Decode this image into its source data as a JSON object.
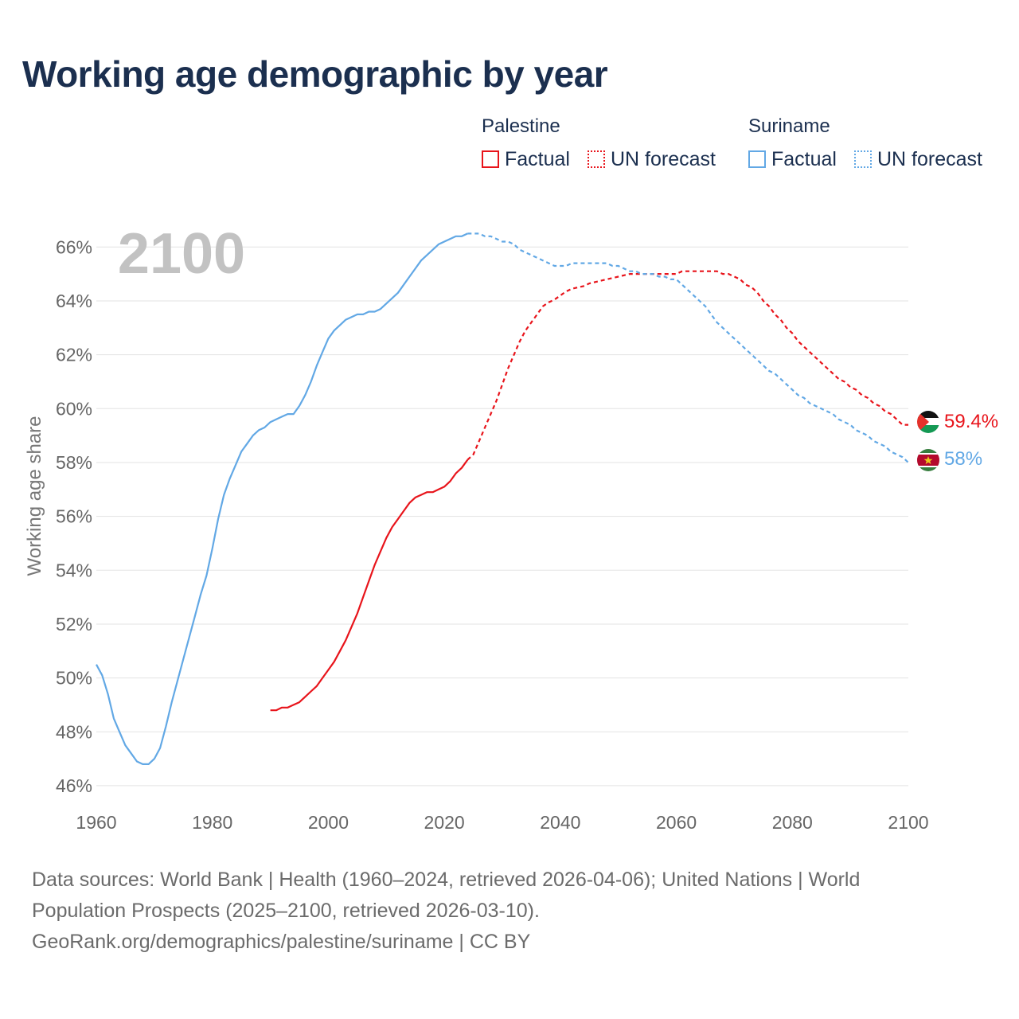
{
  "title": "Working age demographic by year",
  "legend": {
    "groups": [
      {
        "country": "Palestine",
        "color": "#e8141b",
        "items": [
          "Factual",
          "UN forecast"
        ]
      },
      {
        "country": "Suriname",
        "color": "#62a8e5",
        "items": [
          "Factual",
          "UN forecast"
        ]
      }
    ]
  },
  "footer": {
    "line1": "Data sources: World Bank | Health (1960–2024, retrieved 2026-04-06); United Nations | World",
    "line2": "Population Prospects (2025–2100, retrieved 2026-03-10).",
    "line3": "GeoRank.org/demographics/palestine/suriname | CC BY"
  },
  "icons": [
    "palestine-flag-icon",
    "suriname-flag-icon"
  ],
  "chart_data": {
    "type": "line",
    "title": "Working age demographic by year",
    "year_label": "2100",
    "xlabel": "",
    "ylabel": "Working age share",
    "xlim": [
      1960,
      2100
    ],
    "ylim": [
      45.2,
      66.6
    ],
    "x_ticks": [
      1960,
      1980,
      2000,
      2020,
      2040,
      2060,
      2080,
      2100
    ],
    "y_ticks": [
      46,
      48,
      50,
      52,
      54,
      56,
      58,
      60,
      62,
      64,
      66
    ],
    "y_tick_suffix": "%",
    "grid": true,
    "forecast_start": 2024,
    "series": [
      {
        "name": "Palestine",
        "color": "#e8141b",
        "end_label": "59.4%",
        "points": [
          [
            1990,
            48.8
          ],
          [
            1991,
            48.8
          ],
          [
            1992,
            48.9
          ],
          [
            1993,
            48.9
          ],
          [
            1994,
            49.0
          ],
          [
            1995,
            49.1
          ],
          [
            1996,
            49.3
          ],
          [
            1997,
            49.5
          ],
          [
            1998,
            49.7
          ],
          [
            1999,
            50.0
          ],
          [
            2000,
            50.3
          ],
          [
            2001,
            50.6
          ],
          [
            2002,
            51.0
          ],
          [
            2003,
            51.4
          ],
          [
            2004,
            51.9
          ],
          [
            2005,
            52.4
          ],
          [
            2006,
            53.0
          ],
          [
            2007,
            53.6
          ],
          [
            2008,
            54.2
          ],
          [
            2009,
            54.7
          ],
          [
            2010,
            55.2
          ],
          [
            2011,
            55.6
          ],
          [
            2012,
            55.9
          ],
          [
            2013,
            56.2
          ],
          [
            2014,
            56.5
          ],
          [
            2015,
            56.7
          ],
          [
            2016,
            56.8
          ],
          [
            2017,
            56.9
          ],
          [
            2018,
            56.9
          ],
          [
            2019,
            57.0
          ],
          [
            2020,
            57.1
          ],
          [
            2021,
            57.3
          ],
          [
            2022,
            57.6
          ],
          [
            2023,
            57.8
          ],
          [
            2024,
            58.1
          ],
          [
            2025,
            58.3
          ],
          [
            2026,
            58.8
          ],
          [
            2027,
            59.3
          ],
          [
            2028,
            59.8
          ],
          [
            2029,
            60.3
          ],
          [
            2030,
            60.9
          ],
          [
            2031,
            61.5
          ],
          [
            2032,
            62.0
          ],
          [
            2033,
            62.5
          ],
          [
            2034,
            62.9
          ],
          [
            2035,
            63.2
          ],
          [
            2036,
            63.5
          ],
          [
            2037,
            63.8
          ],
          [
            2038,
            63.95
          ],
          [
            2039,
            64.05
          ],
          [
            2040,
            64.2
          ],
          [
            2041,
            64.35
          ],
          [
            2042,
            64.45
          ],
          [
            2043,
            64.5
          ],
          [
            2044,
            64.55
          ],
          [
            2045,
            64.65
          ],
          [
            2046,
            64.7
          ],
          [
            2047,
            64.75
          ],
          [
            2048,
            64.8
          ],
          [
            2049,
            64.85
          ],
          [
            2050,
            64.9
          ],
          [
            2051,
            64.95
          ],
          [
            2052,
            65.0
          ],
          [
            2053,
            65.0
          ],
          [
            2054,
            65.0
          ],
          [
            2055,
            65.0
          ],
          [
            2056,
            65.0
          ],
          [
            2057,
            65.0
          ],
          [
            2058,
            65.0
          ],
          [
            2059,
            65.0
          ],
          [
            2060,
            65.0
          ],
          [
            2061,
            65.1
          ],
          [
            2062,
            65.1
          ],
          [
            2063,
            65.1
          ],
          [
            2064,
            65.1
          ],
          [
            2065,
            65.1
          ],
          [
            2066,
            65.1
          ],
          [
            2067,
            65.1
          ],
          [
            2068,
            65.0
          ],
          [
            2069,
            65.0
          ],
          [
            2070,
            64.9
          ],
          [
            2071,
            64.8
          ],
          [
            2072,
            64.6
          ],
          [
            2073,
            64.5
          ],
          [
            2074,
            64.3
          ],
          [
            2075,
            64.0
          ],
          [
            2076,
            63.8
          ],
          [
            2077,
            63.5
          ],
          [
            2078,
            63.3
          ],
          [
            2079,
            63.0
          ],
          [
            2080,
            62.8
          ],
          [
            2081,
            62.5
          ],
          [
            2082,
            62.3
          ],
          [
            2083,
            62.1
          ],
          [
            2084,
            61.9
          ],
          [
            2085,
            61.7
          ],
          [
            2086,
            61.5
          ],
          [
            2087,
            61.3
          ],
          [
            2088,
            61.1
          ],
          [
            2089,
            61.0
          ],
          [
            2090,
            60.8
          ],
          [
            2091,
            60.7
          ],
          [
            2092,
            60.5
          ],
          [
            2093,
            60.4
          ],
          [
            2094,
            60.2
          ],
          [
            2095,
            60.1
          ],
          [
            2096,
            59.9
          ],
          [
            2097,
            59.8
          ],
          [
            2098,
            59.6
          ],
          [
            2099,
            59.4
          ],
          [
            2100,
            59.4
          ]
        ]
      },
      {
        "name": "Suriname",
        "color": "#62a8e5",
        "end_label": "58%",
        "points": [
          [
            1960,
            50.5
          ],
          [
            1961,
            50.1
          ],
          [
            1962,
            49.4
          ],
          [
            1963,
            48.5
          ],
          [
            1964,
            48.0
          ],
          [
            1965,
            47.5
          ],
          [
            1966,
            47.2
          ],
          [
            1967,
            46.9
          ],
          [
            1968,
            46.8
          ],
          [
            1969,
            46.8
          ],
          [
            1970,
            47.0
          ],
          [
            1971,
            47.4
          ],
          [
            1972,
            48.2
          ],
          [
            1973,
            49.1
          ],
          [
            1974,
            49.9
          ],
          [
            1975,
            50.7
          ],
          [
            1976,
            51.5
          ],
          [
            1977,
            52.3
          ],
          [
            1978,
            53.1
          ],
          [
            1979,
            53.8
          ],
          [
            1980,
            54.8
          ],
          [
            1981,
            55.9
          ],
          [
            1982,
            56.8
          ],
          [
            1983,
            57.4
          ],
          [
            1984,
            57.9
          ],
          [
            1985,
            58.4
          ],
          [
            1986,
            58.7
          ],
          [
            1987,
            59.0
          ],
          [
            1988,
            59.2
          ],
          [
            1989,
            59.3
          ],
          [
            1990,
            59.5
          ],
          [
            1991,
            59.6
          ],
          [
            1992,
            59.7
          ],
          [
            1993,
            59.8
          ],
          [
            1994,
            59.8
          ],
          [
            1995,
            60.1
          ],
          [
            1996,
            60.5
          ],
          [
            1997,
            61.0
          ],
          [
            1998,
            61.6
          ],
          [
            1999,
            62.1
          ],
          [
            2000,
            62.6
          ],
          [
            2001,
            62.9
          ],
          [
            2002,
            63.1
          ],
          [
            2003,
            63.3
          ],
          [
            2004,
            63.4
          ],
          [
            2005,
            63.5
          ],
          [
            2006,
            63.5
          ],
          [
            2007,
            63.6
          ],
          [
            2008,
            63.6
          ],
          [
            2009,
            63.7
          ],
          [
            2010,
            63.9
          ],
          [
            2011,
            64.1
          ],
          [
            2012,
            64.3
          ],
          [
            2013,
            64.6
          ],
          [
            2014,
            64.9
          ],
          [
            2015,
            65.2
          ],
          [
            2016,
            65.5
          ],
          [
            2017,
            65.7
          ],
          [
            2018,
            65.9
          ],
          [
            2019,
            66.1
          ],
          [
            2020,
            66.2
          ],
          [
            2021,
            66.3
          ],
          [
            2022,
            66.4
          ],
          [
            2023,
            66.4
          ],
          [
            2024,
            66.5
          ],
          [
            2025,
            66.5
          ],
          [
            2026,
            66.5
          ],
          [
            2027,
            66.4
          ],
          [
            2028,
            66.4
          ],
          [
            2029,
            66.3
          ],
          [
            2030,
            66.2
          ],
          [
            2031,
            66.2
          ],
          [
            2032,
            66.1
          ],
          [
            2033,
            65.9
          ],
          [
            2034,
            65.8
          ],
          [
            2035,
            65.7
          ],
          [
            2036,
            65.6
          ],
          [
            2037,
            65.5
          ],
          [
            2038,
            65.4
          ],
          [
            2039,
            65.3
          ],
          [
            2040,
            65.3
          ],
          [
            2041,
            65.3
          ],
          [
            2042,
            65.4
          ],
          [
            2043,
            65.4
          ],
          [
            2044,
            65.4
          ],
          [
            2045,
            65.4
          ],
          [
            2046,
            65.4
          ],
          [
            2047,
            65.4
          ],
          [
            2048,
            65.4
          ],
          [
            2049,
            65.3
          ],
          [
            2050,
            65.3
          ],
          [
            2051,
            65.2
          ],
          [
            2052,
            65.1
          ],
          [
            2053,
            65.1
          ],
          [
            2054,
            65.0
          ],
          [
            2055,
            65.0
          ],
          [
            2056,
            65.0
          ],
          [
            2057,
            64.9
          ],
          [
            2058,
            64.9
          ],
          [
            2059,
            64.8
          ],
          [
            2060,
            64.8
          ],
          [
            2061,
            64.6
          ],
          [
            2062,
            64.4
          ],
          [
            2063,
            64.2
          ],
          [
            2064,
            64.0
          ],
          [
            2065,
            63.8
          ],
          [
            2066,
            63.5
          ],
          [
            2067,
            63.2
          ],
          [
            2068,
            63.0
          ],
          [
            2069,
            62.8
          ],
          [
            2070,
            62.6
          ],
          [
            2071,
            62.4
          ],
          [
            2072,
            62.2
          ],
          [
            2073,
            62.0
          ],
          [
            2074,
            61.8
          ],
          [
            2075,
            61.6
          ],
          [
            2076,
            61.4
          ],
          [
            2077,
            61.3
          ],
          [
            2078,
            61.1
          ],
          [
            2079,
            60.9
          ],
          [
            2080,
            60.7
          ],
          [
            2081,
            60.5
          ],
          [
            2082,
            60.4
          ],
          [
            2083,
            60.2
          ],
          [
            2084,
            60.1
          ],
          [
            2085,
            60.0
          ],
          [
            2086,
            59.9
          ],
          [
            2087,
            59.8
          ],
          [
            2088,
            59.6
          ],
          [
            2089,
            59.5
          ],
          [
            2090,
            59.4
          ],
          [
            2091,
            59.2
          ],
          [
            2092,
            59.1
          ],
          [
            2093,
            59.0
          ],
          [
            2094,
            58.8
          ],
          [
            2095,
            58.7
          ],
          [
            2096,
            58.6
          ],
          [
            2097,
            58.4
          ],
          [
            2098,
            58.3
          ],
          [
            2099,
            58.2
          ],
          [
            2100,
            58.0
          ]
        ]
      }
    ]
  }
}
